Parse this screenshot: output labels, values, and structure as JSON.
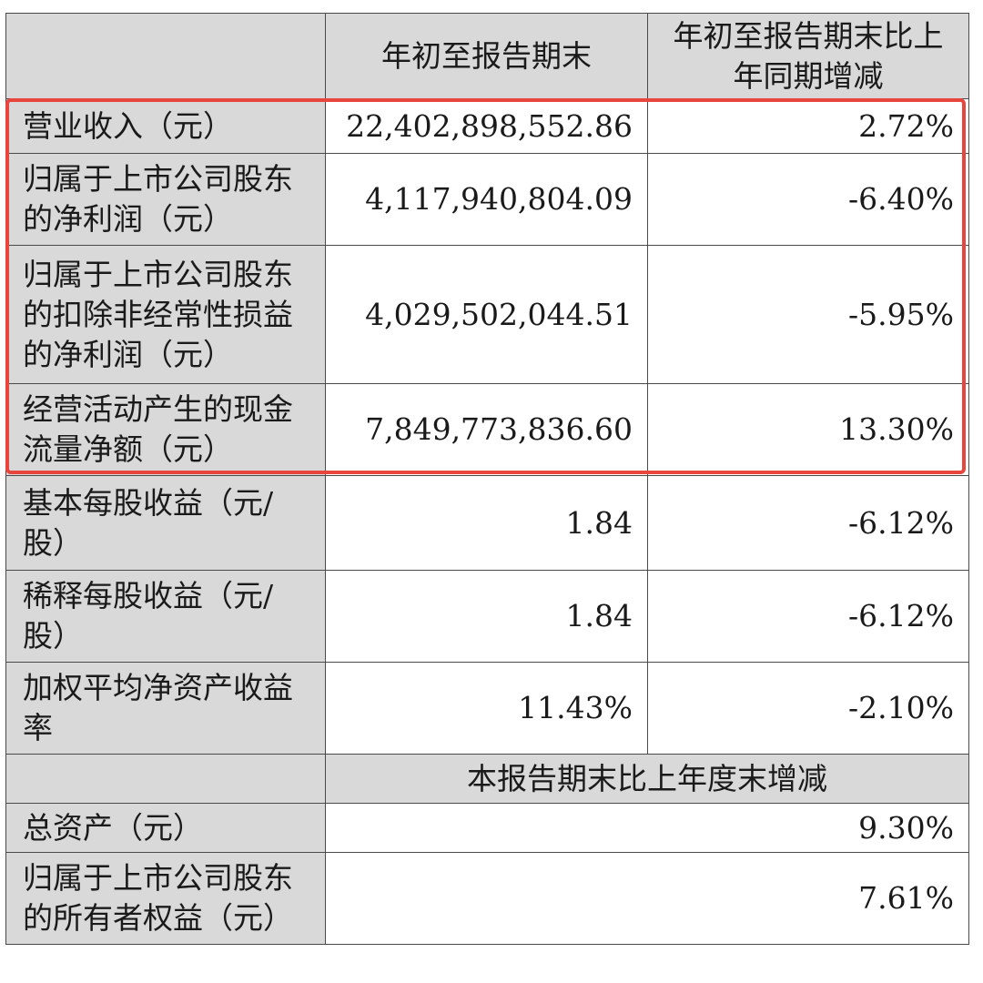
{
  "table": {
    "header": {
      "col1": "",
      "col2": "年初至报告期末",
      "col3": "年初至报告期末比上年同期增减"
    },
    "rows": [
      {
        "label": "营业收入（元）",
        "ytd": "22,402,898,552.86",
        "change": "2.72%"
      },
      {
        "label": "归属于上市公司股东的净利润（元）",
        "ytd": "4,117,940,804.09",
        "change": "-6.40%"
      },
      {
        "label": "归属于上市公司股东的扣除非经常性损益的净利润（元）",
        "ytd": "4,029,502,044.51",
        "change": "-5.95%"
      },
      {
        "label": "经营活动产生的现金流量净额（元）",
        "ytd": "7,849,773,836.60",
        "change": "13.30%"
      },
      {
        "label": "基本每股收益（元/股）",
        "ytd": "1.84",
        "change": "-6.12%"
      },
      {
        "label": "稀释每股收益（元/股）",
        "ytd": "1.84",
        "change": "-6.12%"
      },
      {
        "label": "加权平均净资产收益率",
        "ytd": "11.43%",
        "change": "-2.10%"
      }
    ],
    "subheader": "本报告期末比上年度末增减",
    "rows2": [
      {
        "label": "总资产（元）",
        "change": "9.30%"
      },
      {
        "label": "归属于上市公司股东的所有者权益（元）",
        "change": "7.61%"
      }
    ]
  },
  "highlight": {
    "color": "#e8453c"
  }
}
